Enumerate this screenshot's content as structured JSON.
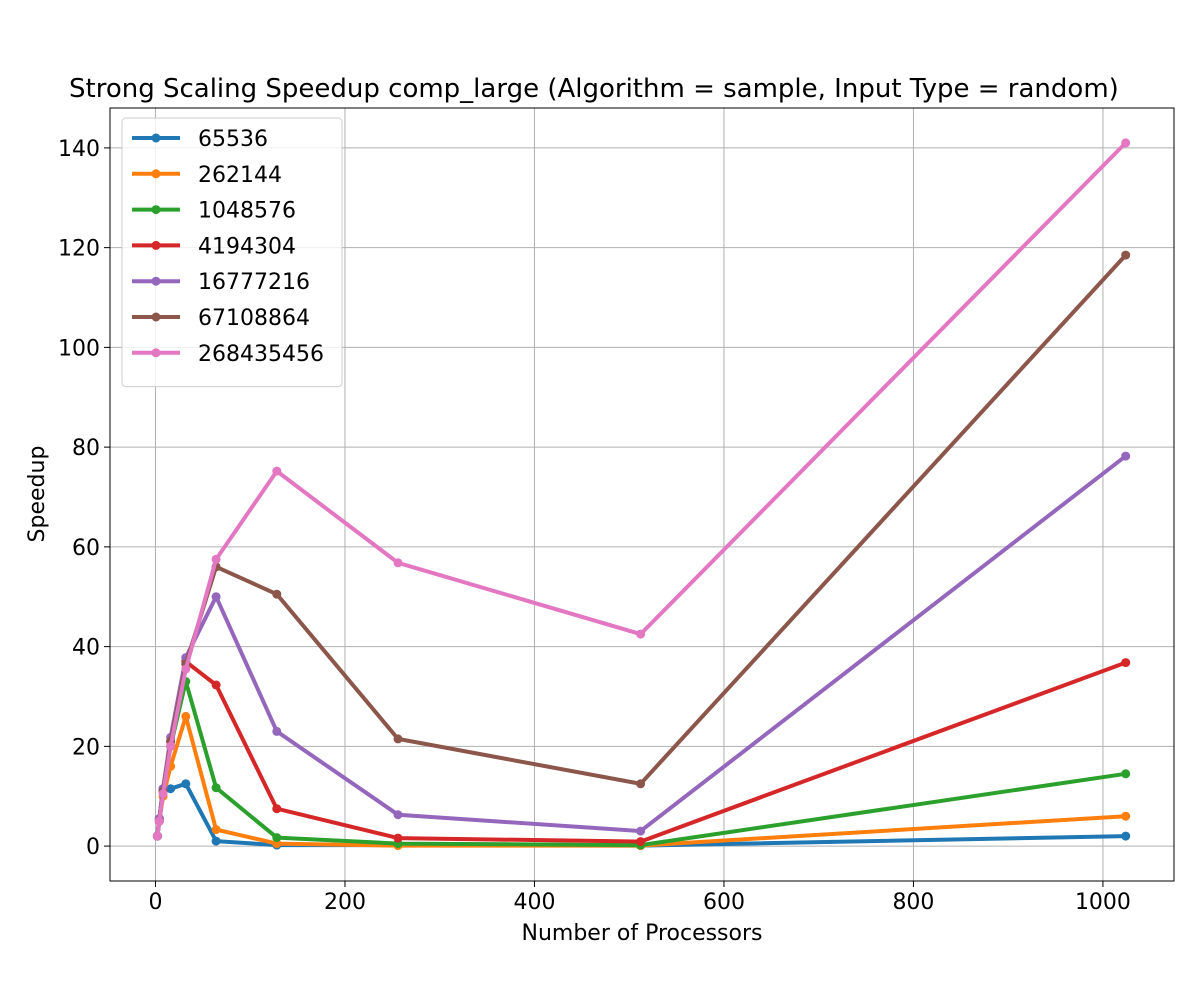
{
  "chart_data": {
    "type": "line",
    "title": "Strong Scaling Speedup comp_large (Algorithm = sample, Input Type = random)",
    "xlabel": "Number of Processors",
    "ylabel": "Speedup",
    "xlim": [
      -48,
      1075
    ],
    "ylim": [
      -7,
      148
    ],
    "x_ticks": [
      0,
      200,
      400,
      600,
      800,
      1000
    ],
    "x_tick_labels": [
      "0",
      "200",
      "400",
      "600",
      "800",
      "1000"
    ],
    "y_ticks": [
      0,
      20,
      40,
      60,
      80,
      100,
      120,
      140
    ],
    "y_tick_labels": [
      "0",
      "20",
      "40",
      "60",
      "80",
      "100",
      "120",
      "140"
    ],
    "grid": true,
    "legend_position": "top-left",
    "x": [
      2,
      4,
      8,
      16,
      32,
      64,
      128,
      256,
      512,
      1024
    ],
    "series": [
      {
        "name": "65536",
        "color": "#1f77b4",
        "values": [
          2.0,
          5.5,
          11.5,
          11.5,
          12.5,
          1.0,
          0.2,
          0.2,
          0.1,
          2.0
        ]
      },
      {
        "name": "262144",
        "color": "#ff7f0e",
        "values": [
          2.0,
          5.0,
          10.0,
          16.0,
          26.0,
          3.3,
          0.5,
          0.1,
          0.1,
          6.0
        ]
      },
      {
        "name": "1048576",
        "color": "#2ca02c",
        "values": [
          2.0,
          5.2,
          11.0,
          20.0,
          33.0,
          11.7,
          1.7,
          0.5,
          0.2,
          14.5
        ]
      },
      {
        "name": "4194304",
        "color": "#d62728",
        "values": [
          2.0,
          5.5,
          11.5,
          21.0,
          37.0,
          32.3,
          7.5,
          1.6,
          0.9,
          36.8
        ]
      },
      {
        "name": "16777216",
        "color": "#9467bd",
        "values": [
          2.0,
          5.5,
          11.5,
          21.8,
          37.8,
          50.0,
          23.0,
          6.3,
          3.0,
          78.2
        ]
      },
      {
        "name": "67108864",
        "color": "#8c564b",
        "values": [
          2.0,
          5.0,
          11.0,
          21.0,
          36.5,
          56.0,
          50.5,
          21.5,
          12.5,
          118.5
        ]
      },
      {
        "name": "268435456",
        "color": "#e377c2",
        "values": [
          2.0,
          5.0,
          10.5,
          20.0,
          35.5,
          57.5,
          75.2,
          56.8,
          42.5,
          141.0
        ]
      }
    ]
  }
}
